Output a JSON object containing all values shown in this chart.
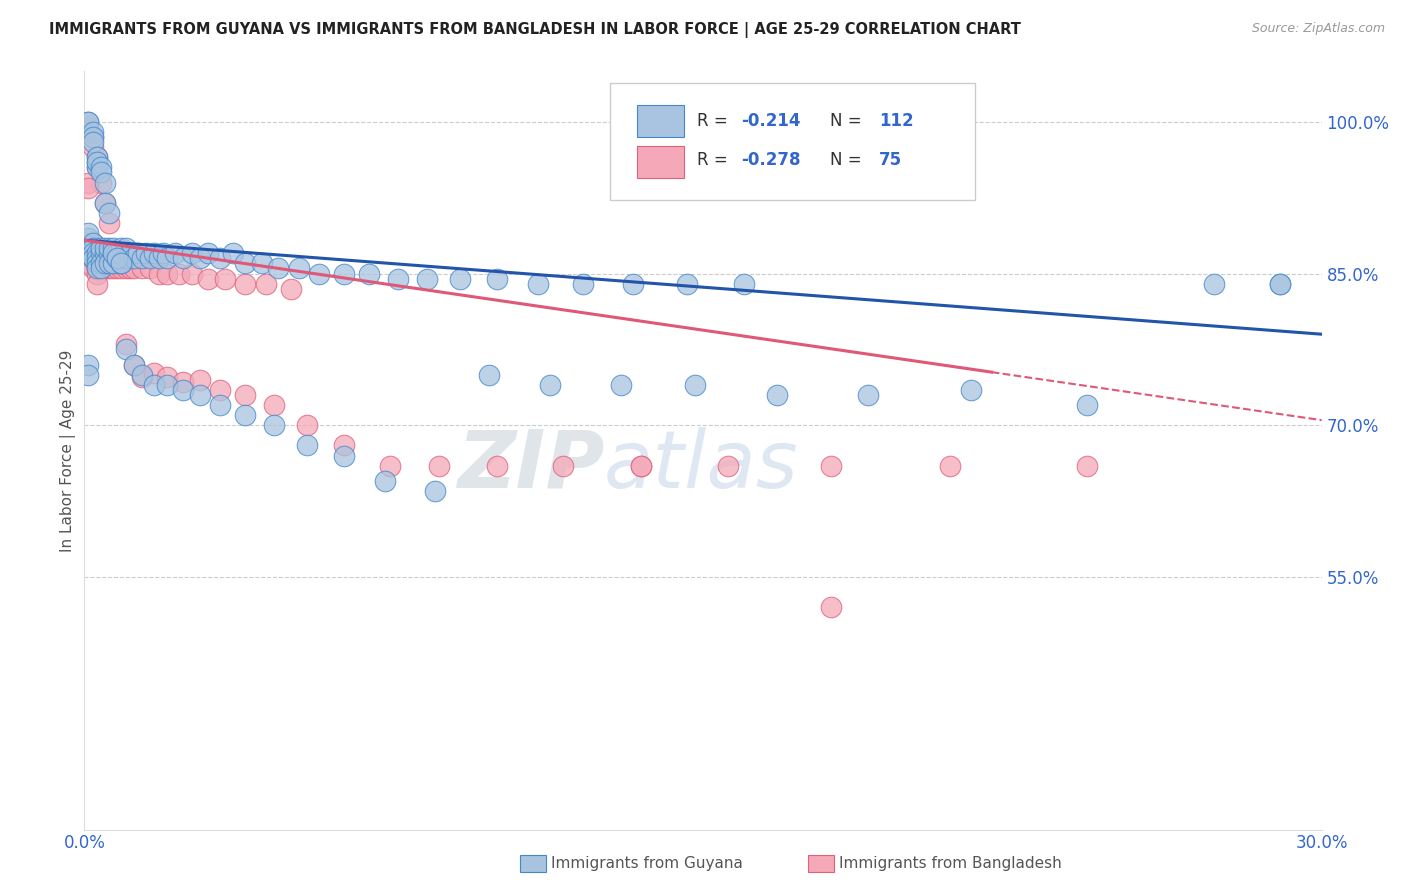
{
  "title": "IMMIGRANTS FROM GUYANA VS IMMIGRANTS FROM BANGLADESH IN LABOR FORCE | AGE 25-29 CORRELATION CHART",
  "source": "Source: ZipAtlas.com",
  "ylabel": "In Labor Force | Age 25-29",
  "xmin": 0.0,
  "xmax": 0.3,
  "ymin": 0.3,
  "ymax": 1.05,
  "yticks": [
    1.0,
    0.85,
    0.7,
    0.55
  ],
  "ytick_labels": [
    "100.0%",
    "85.0%",
    "70.0%",
    "55.0%"
  ],
  "xticks": [
    0.0,
    0.05,
    0.1,
    0.15,
    0.2,
    0.25,
    0.3
  ],
  "xtick_labels": [
    "0.0%",
    "",
    "",
    "",
    "",
    "",
    "30.0%"
  ],
  "legend_r1": "-0.214",
  "legend_n1": "112",
  "legend_r2": "-0.278",
  "legend_n2": "75",
  "color_guyana_fill": "#a8c4e0",
  "color_guyana_edge": "#4488cc",
  "color_bangladesh_fill": "#f4a8b8",
  "color_bangladesh_edge": "#e0607a",
  "color_blue_line": "#2255aa",
  "color_pink_line": "#e05878",
  "color_blue_text": "#3366cc",
  "watermark_zip": "ZIP",
  "watermark_atlas": "atlas",
  "legend_label1": "Immigrants from Guyana",
  "legend_label2": "Immigrants from Bangladesh",
  "guyana_x": [
    0.001,
    0.001,
    0.001,
    0.001,
    0.001,
    0.002,
    0.002,
    0.002,
    0.002,
    0.002,
    0.002,
    0.002,
    0.003,
    0.003,
    0.003,
    0.003,
    0.003,
    0.003,
    0.004,
    0.004,
    0.004,
    0.004,
    0.005,
    0.005,
    0.005,
    0.006,
    0.006,
    0.006,
    0.007,
    0.007,
    0.007,
    0.008,
    0.008,
    0.009,
    0.009,
    0.01,
    0.01,
    0.011,
    0.012,
    0.013,
    0.014,
    0.015,
    0.016,
    0.017,
    0.018,
    0.019,
    0.02,
    0.022,
    0.024,
    0.026,
    0.028,
    0.03,
    0.033,
    0.036,
    0.039,
    0.043,
    0.047,
    0.052,
    0.057,
    0.063,
    0.069,
    0.076,
    0.083,
    0.091,
    0.1,
    0.11,
    0.121,
    0.133,
    0.146,
    0.16,
    0.001,
    0.001,
    0.002,
    0.002,
    0.002,
    0.003,
    0.003,
    0.004,
    0.004,
    0.005,
    0.005,
    0.006,
    0.007,
    0.008,
    0.009,
    0.01,
    0.012,
    0.014,
    0.017,
    0.02,
    0.024,
    0.028,
    0.033,
    0.039,
    0.046,
    0.054,
    0.063,
    0.073,
    0.085,
    0.098,
    0.113,
    0.13,
    0.148,
    0.168,
    0.19,
    0.215,
    0.243,
    0.274,
    0.29,
    0.001,
    0.001,
    0.29
  ],
  "guyana_y": [
    0.875,
    0.88,
    0.885,
    0.89,
    0.87,
    0.875,
    0.87,
    0.865,
    0.88,
    0.875,
    0.87,
    0.865,
    0.96,
    0.955,
    0.87,
    0.865,
    0.86,
    0.855,
    0.87,
    0.875,
    0.86,
    0.855,
    0.87,
    0.875,
    0.86,
    0.87,
    0.875,
    0.86,
    0.87,
    0.875,
    0.86,
    0.87,
    0.865,
    0.875,
    0.86,
    0.875,
    0.865,
    0.87,
    0.865,
    0.87,
    0.865,
    0.87,
    0.865,
    0.87,
    0.865,
    0.87,
    0.865,
    0.87,
    0.865,
    0.87,
    0.865,
    0.87,
    0.865,
    0.87,
    0.86,
    0.86,
    0.855,
    0.855,
    0.85,
    0.85,
    0.85,
    0.845,
    0.845,
    0.845,
    0.845,
    0.84,
    0.84,
    0.84,
    0.84,
    0.84,
    1.0,
    1.0,
    0.99,
    0.985,
    0.98,
    0.965,
    0.96,
    0.955,
    0.95,
    0.94,
    0.92,
    0.91,
    0.87,
    0.865,
    0.86,
    0.775,
    0.76,
    0.75,
    0.74,
    0.74,
    0.735,
    0.73,
    0.72,
    0.71,
    0.7,
    0.68,
    0.67,
    0.645,
    0.635,
    0.75,
    0.74,
    0.74,
    0.74,
    0.73,
    0.73,
    0.735,
    0.72,
    0.84,
    0.84,
    0.76,
    0.75,
    0.84
  ],
  "bangladesh_x": [
    0.001,
    0.001,
    0.001,
    0.001,
    0.002,
    0.002,
    0.002,
    0.002,
    0.003,
    0.003,
    0.003,
    0.004,
    0.004,
    0.005,
    0.005,
    0.006,
    0.006,
    0.007,
    0.007,
    0.008,
    0.009,
    0.01,
    0.011,
    0.012,
    0.014,
    0.016,
    0.018,
    0.02,
    0.023,
    0.026,
    0.03,
    0.034,
    0.039,
    0.044,
    0.05,
    0.001,
    0.001,
    0.002,
    0.002,
    0.003,
    0.003,
    0.004,
    0.005,
    0.006,
    0.007,
    0.008,
    0.01,
    0.012,
    0.014,
    0.017,
    0.02,
    0.024,
    0.028,
    0.033,
    0.039,
    0.046,
    0.054,
    0.063,
    0.074,
    0.086,
    0.1,
    0.116,
    0.135,
    0.156,
    0.181,
    0.21,
    0.243,
    0.001,
    0.001,
    0.002,
    0.002,
    0.003,
    0.003,
    0.135,
    0.181
  ],
  "bangladesh_y": [
    0.875,
    0.87,
    0.865,
    0.86,
    0.875,
    0.87,
    0.865,
    0.855,
    0.87,
    0.865,
    0.855,
    0.87,
    0.86,
    0.865,
    0.855,
    0.86,
    0.855,
    0.86,
    0.855,
    0.855,
    0.855,
    0.855,
    0.855,
    0.855,
    0.855,
    0.855,
    0.85,
    0.85,
    0.85,
    0.85,
    0.845,
    0.845,
    0.84,
    0.84,
    0.835,
    0.995,
    0.99,
    0.985,
    0.975,
    0.965,
    0.955,
    0.94,
    0.92,
    0.9,
    0.87,
    0.86,
    0.78,
    0.76,
    0.748,
    0.752,
    0.748,
    0.743,
    0.745,
    0.735,
    0.73,
    0.72,
    0.7,
    0.68,
    0.66,
    0.66,
    0.66,
    0.66,
    0.66,
    0.66,
    0.66,
    0.66,
    0.66,
    0.94,
    0.935,
    0.88,
    0.875,
    0.85,
    0.84,
    0.66,
    0.52
  ]
}
